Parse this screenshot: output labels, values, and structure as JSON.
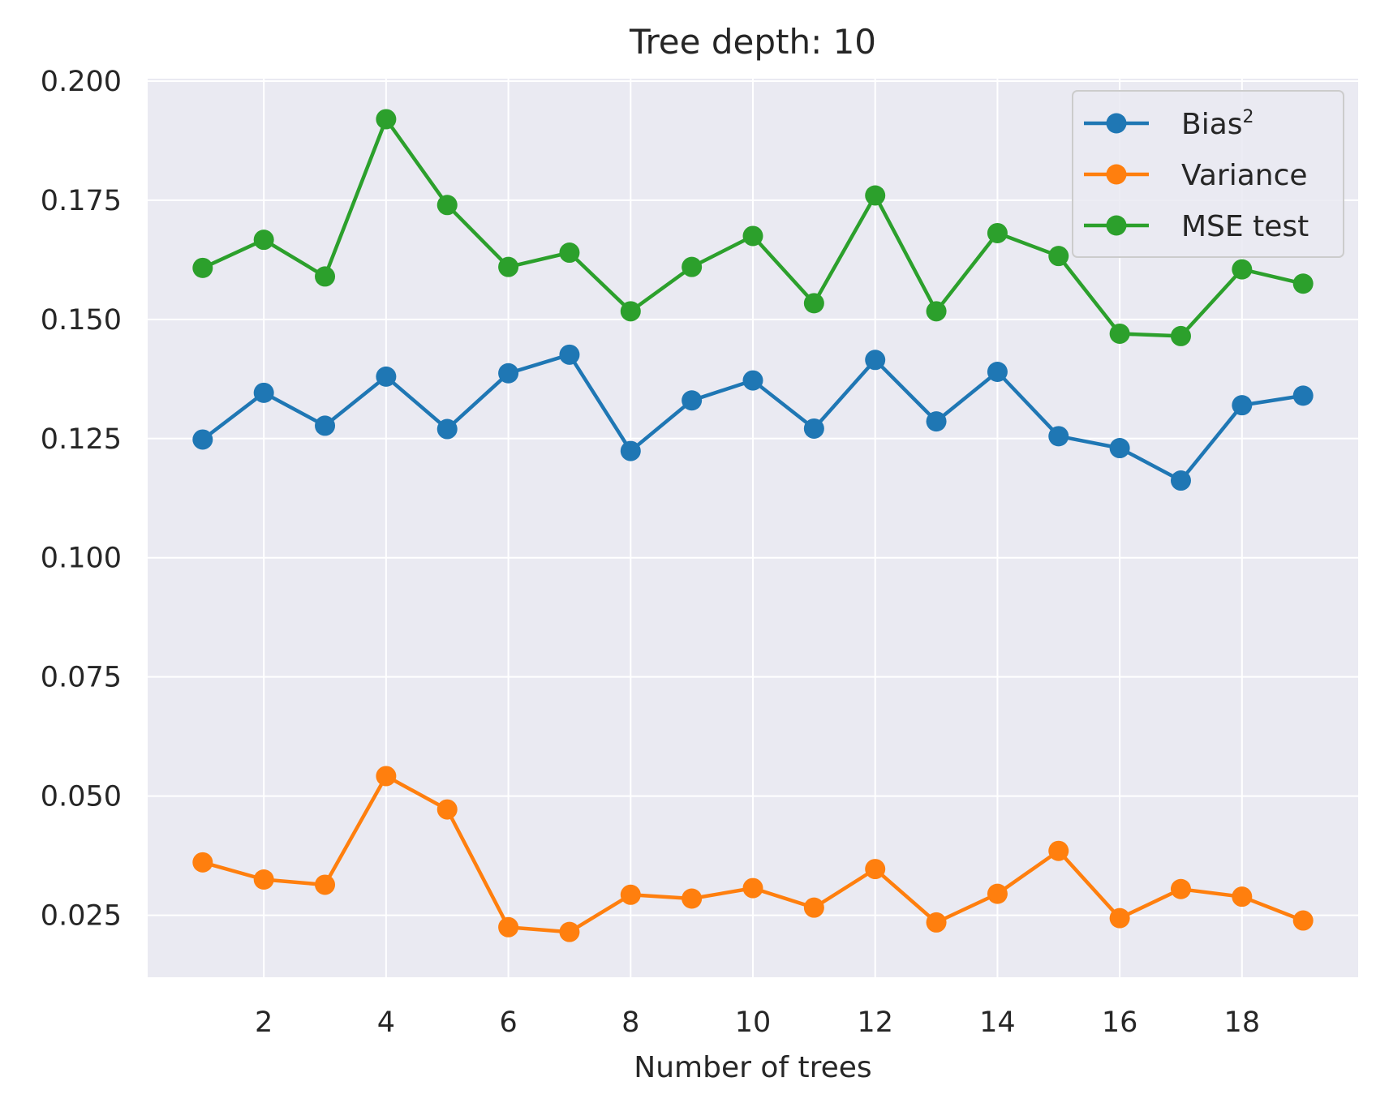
{
  "chart_data": {
    "type": "line",
    "title": "Tree depth: 10",
    "xlabel": "Number of trees",
    "ylabel": "",
    "xlim": [
      0.1,
      19.9
    ],
    "ylim": [
      0.012,
      0.2005
    ],
    "xticks": [
      2,
      4,
      6,
      8,
      10,
      12,
      14,
      16,
      18
    ],
    "xtick_labels": [
      "2",
      "4",
      "6",
      "8",
      "10",
      "12",
      "14",
      "16",
      "18"
    ],
    "yticks": [
      0.025,
      0.05,
      0.075,
      0.1,
      0.125,
      0.15,
      0.175,
      0.2
    ],
    "ytick_labels": [
      "0.025",
      "0.050",
      "0.075",
      "0.100",
      "0.125",
      "0.150",
      "0.175",
      "0.200"
    ],
    "grid": true,
    "legend_position": "top-right",
    "x": [
      1,
      2,
      3,
      4,
      5,
      6,
      7,
      8,
      9,
      10,
      11,
      12,
      13,
      14,
      15,
      16,
      17,
      18,
      19
    ],
    "series": [
      {
        "name": "Bias",
        "name_superscript": "2",
        "color": "#1f77b4",
        "values": [
          0.1248,
          0.1346,
          0.1277,
          0.138,
          0.127,
          0.1387,
          0.1426,
          0.1224,
          0.133,
          0.1372,
          0.1271,
          0.1415,
          0.1286,
          0.139,
          0.1255,
          0.123,
          0.1162,
          0.132,
          0.134
        ]
      },
      {
        "name": "Variance",
        "color": "#ff7f0e",
        "values": [
          0.0361,
          0.0325,
          0.0314,
          0.0542,
          0.0472,
          0.0225,
          0.0215,
          0.0293,
          0.0285,
          0.0307,
          0.0266,
          0.0347,
          0.0235,
          0.0295,
          0.0385,
          0.0244,
          0.0305,
          0.0289,
          0.0239
        ]
      },
      {
        "name": "MSE test",
        "color": "#2ca02c",
        "values": [
          0.1608,
          0.1667,
          0.159,
          0.192,
          0.174,
          0.161,
          0.164,
          0.1517,
          0.161,
          0.1675,
          0.1534,
          0.176,
          0.1517,
          0.1681,
          0.1633,
          0.147,
          0.1465,
          0.1605,
          0.1575
        ]
      }
    ]
  }
}
